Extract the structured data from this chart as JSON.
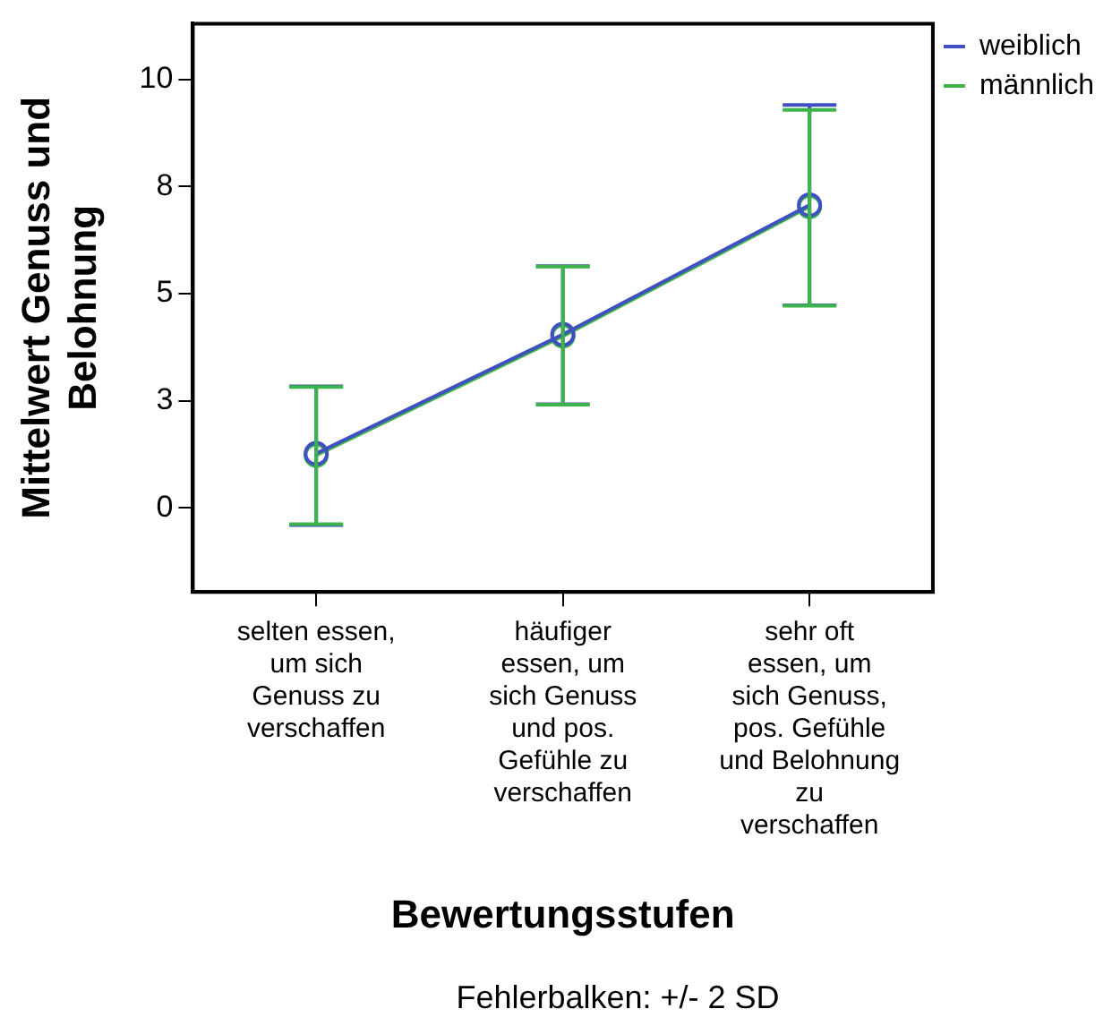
{
  "chart_data": {
    "type": "line",
    "ylabel": "Mittelwert Genuss und Belohnung",
    "xlabel": "Bewertungsstufen",
    "annotations": [
      "Fehlerbalken: +/- 2 SD"
    ],
    "categories": [
      "selten essen, um sich Genuss zu verschaffen",
      "häufiger essen, um sich Genuss und pos. Gefühle zu verschaffen",
      "sehr oft essen, um sich Genuss, pos. Gefühle und Belohnung zu verschaffen"
    ],
    "series": [
      {
        "name": "weiblich",
        "color": "#4050c0",
        "values": [
          1.27,
          4.05,
          7.07
        ],
        "errors": [
          [
            -0.4,
            2.84
          ],
          [
            2.42,
            5.64
          ],
          [
            4.73,
            9.4
          ]
        ]
      },
      {
        "name": "männlich",
        "color": "#3cb44b",
        "values": [
          1.23,
          4.01,
          7.03
        ],
        "errors": [
          [
            -0.38,
            2.82
          ],
          [
            2.41,
            5.63
          ],
          [
            4.72,
            9.29
          ]
        ]
      }
    ],
    "ylim": [
      -1.96,
      11.3
    ],
    "yticks": [
      {
        "value": 0,
        "label": "0"
      },
      {
        "value": 2.5,
        "label": "3"
      },
      {
        "value": 5,
        "label": "5"
      },
      {
        "value": 7.5,
        "label": "8"
      },
      {
        "value": 10,
        "label": "10"
      }
    ],
    "grid": false,
    "legend": "top right",
    "marker": "circle",
    "line_style": "solid"
  }
}
